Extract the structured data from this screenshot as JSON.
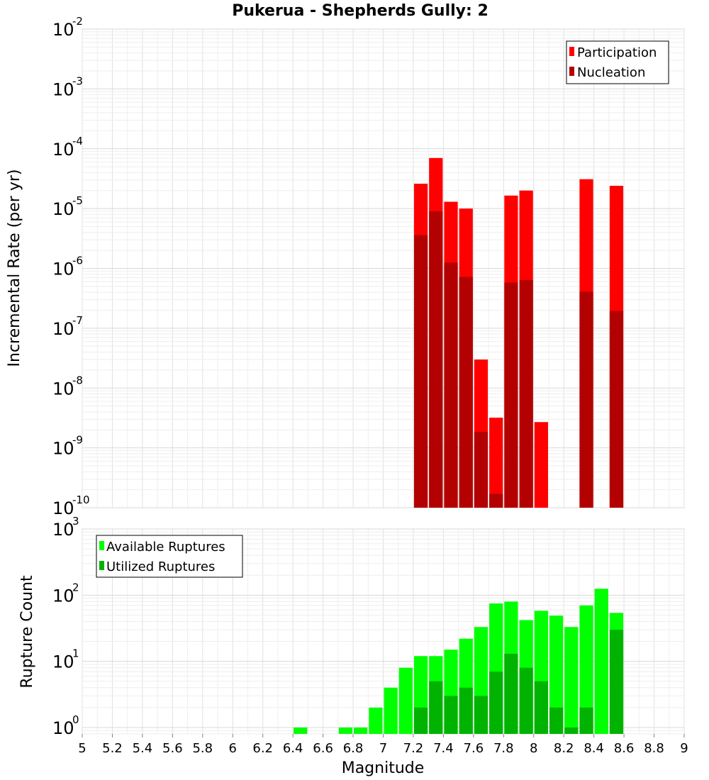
{
  "chart_data": [
    {
      "type": "bar",
      "title": "Pukerua - Shepherds Gully: 2",
      "xlabel": "Magnitude",
      "ylabel": "Incremental Rate (per yr)",
      "y_scale": "log",
      "ylim": [
        1e-10,
        0.01
      ],
      "xlim": [
        5,
        9
      ],
      "bin_width": 0.1,
      "legend_position": "top-right",
      "legend": [
        "Participation",
        "Nucleation"
      ],
      "grid": true,
      "x_tick_labels": [
        "5",
        "5.2",
        "5.4",
        "5.6",
        "5.8",
        "6",
        "6.2",
        "6.4",
        "6.6",
        "6.8",
        "7",
        "7.2",
        "7.4",
        "7.6",
        "7.8",
        "8",
        "8.2",
        "8.4",
        "8.6",
        "8.8",
        "9"
      ],
      "y_tick_labels": [
        {
          "base": "10",
          "exp": "-10"
        },
        {
          "base": "10",
          "exp": "-9"
        },
        {
          "base": "10",
          "exp": "-8"
        },
        {
          "base": "10",
          "exp": "-7"
        },
        {
          "base": "10",
          "exp": "-6"
        },
        {
          "base": "10",
          "exp": "-5"
        },
        {
          "base": "10",
          "exp": "-4"
        },
        {
          "base": "10",
          "exp": "-3"
        },
        {
          "base": "10",
          "exp": "-2"
        }
      ],
      "x": [
        7.25,
        7.35,
        7.45,
        7.55,
        7.65,
        7.75,
        7.85,
        7.95,
        8.05,
        8.35,
        8.55
      ],
      "series": [
        {
          "name": "Participation",
          "color": "#ff0000",
          "values": [
            2.6e-05,
            7e-05,
            1.3e-05,
            1e-05,
            3e-08,
            3.2e-09,
            1.65e-05,
            2e-05,
            2.7e-09,
            3.1e-05,
            2.4e-05
          ]
        },
        {
          "name": "Nucleation",
          "color": "#b30000",
          "values": [
            3.6e-06,
            9e-06,
            1.25e-06,
            7.2e-07,
            1.85e-09,
            1.7e-10,
            5.8e-07,
            6.4e-07,
            null,
            4.1e-07,
            1.95e-07
          ]
        }
      ]
    },
    {
      "type": "bar",
      "xlabel": "Magnitude",
      "ylabel": "Rupture Count",
      "y_scale": "log",
      "ylim": [
        0.8,
        1000
      ],
      "xlim": [
        5,
        9
      ],
      "bin_width": 0.1,
      "legend_position": "top-left",
      "legend": [
        "Available Ruptures",
        "Utilized Ruptures"
      ],
      "grid": true,
      "y_tick_labels": [
        {
          "base": "10",
          "exp": "0"
        },
        {
          "base": "10",
          "exp": "1"
        },
        {
          "base": "10",
          "exp": "2"
        },
        {
          "base": "10",
          "exp": "3"
        }
      ],
      "x": [
        6.45,
        6.75,
        6.85,
        6.95,
        7.05,
        7.15,
        7.25,
        7.35,
        7.45,
        7.55,
        7.65,
        7.75,
        7.85,
        7.95,
        8.05,
        8.15,
        8.25,
        8.35,
        8.45,
        8.55
      ],
      "series": [
        {
          "name": "Available Ruptures",
          "color": "#00ff00",
          "values": [
            1,
            1,
            1,
            2,
            4,
            8,
            12,
            12,
            15,
            22,
            33,
            75,
            80,
            42,
            58,
            49,
            33,
            70,
            125,
            54
          ]
        },
        {
          "name": "Utilized Ruptures",
          "color": "#00b300",
          "values": [
            null,
            null,
            null,
            null,
            null,
            null,
            2,
            5,
            3,
            4,
            3,
            7,
            13,
            8,
            5,
            2,
            1,
            2,
            null,
            30
          ]
        }
      ]
    }
  ]
}
